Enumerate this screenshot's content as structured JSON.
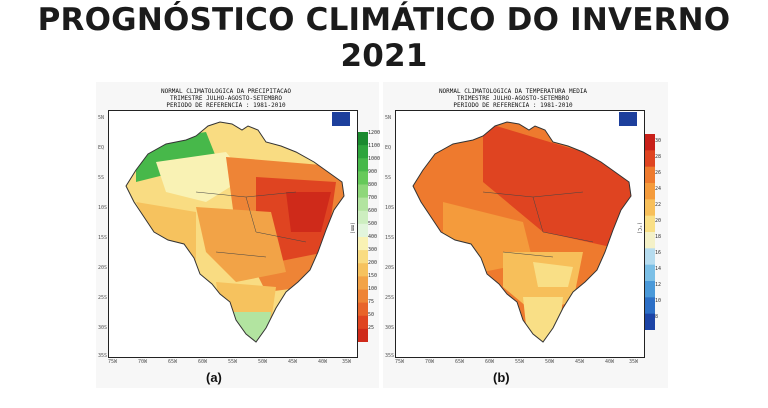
{
  "title": "PROGNÓSTICO CLIMÁTICO DO INVERNO 2021",
  "lat_labels": [
    "5N",
    "EQ",
    "5S",
    "10S",
    "15S",
    "20S",
    "25S",
    "30S",
    "35S"
  ],
  "lon_labels": [
    "75W",
    "70W",
    "65W",
    "60W",
    "55W",
    "50W",
    "45W",
    "40W",
    "35W"
  ],
  "map_a": {
    "header": [
      "NORMAL CLIMATOLOGICA DA PRECIPITACAO",
      "TRIMESTRE JULHO-AGOSTO-SETEMBRO",
      "PERIODO DE REFERENCIA : 1981-2010"
    ],
    "label": "(a)",
    "unit": "(mm)",
    "colorbar": [
      "1200",
      "1100",
      "1000",
      "900",
      "800",
      "700",
      "600",
      "500",
      "400",
      "300",
      "200",
      "150",
      "100",
      "75",
      "50",
      "25"
    ],
    "colorbar_colors": [
      "#1a8a2e",
      "#2ea43c",
      "#47b84a",
      "#66c95a",
      "#8ed77a",
      "#b2e4a0",
      "#cdeec0",
      "#e2f5dc",
      "#f9f2b4",
      "#f9dc82",
      "#f6c25e",
      "#f2a347",
      "#ee8436",
      "#e8642a",
      "#df4421",
      "#cf2a1a"
    ]
  },
  "map_b": {
    "header": [
      "NORMAL CLIMATOLOGICA DA TEMPERATURA MEDIA",
      "TRIMESTRE JULHO-AGOSTO-SETEMBRO",
      "PERIODO DE REFERENCIA : 1981-2010"
    ],
    "label": "(b)",
    "unit": "(°C)",
    "colorbar": [
      "30",
      "28",
      "26",
      "24",
      "22",
      "20",
      "18",
      "16",
      "14",
      "12",
      "10",
      "8"
    ],
    "colorbar_colors": [
      "#c8201a",
      "#df4421",
      "#ee7a2e",
      "#f49b3c",
      "#f7bf5a",
      "#f9df86",
      "#f4f1c8",
      "#b6dcef",
      "#7bbfe6",
      "#4a99d9",
      "#2c6fc6",
      "#1c44a6"
    ]
  }
}
